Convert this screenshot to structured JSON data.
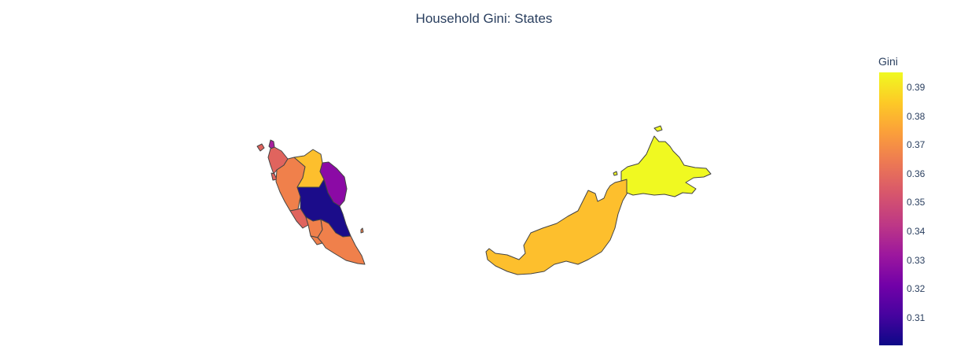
{
  "title": "Household Gini: States",
  "colorbar": {
    "title": "Gini",
    "colorscale": "plasma",
    "min": 0.3,
    "max": 0.396,
    "ticks": [
      "0.39",
      "0.38",
      "0.37",
      "0.36",
      "0.35",
      "0.34",
      "0.33",
      "0.32",
      "0.31"
    ]
  },
  "colors": {
    "v031": "#1b0c8a",
    "v033": "#8b0aa5",
    "v034": "#a81f9e",
    "v036": "#e0645e",
    "v037": "#f0804b",
    "v038": "#f8ab31",
    "v0385": "#fdbf2d",
    "v039": "#f0f921"
  }
}
